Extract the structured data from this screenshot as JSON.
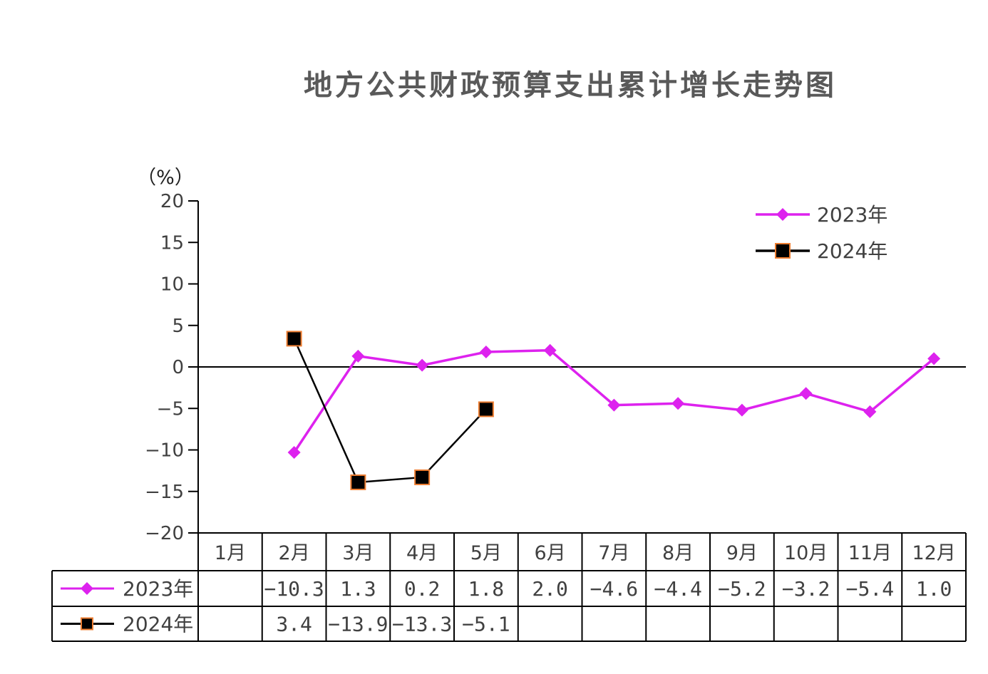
{
  "colors": {
    "series_2023": "#dd22ee",
    "series_2024": "#000000",
    "marker_2024_border": "#ed7d31",
    "axis": "#000000",
    "text": "#404040"
  },
  "chart_data": {
    "type": "line",
    "title": "地方公共财政预算支出累计增长走势图",
    "ylabel": "（%）",
    "xlabel": "",
    "ylim": [
      -20,
      20
    ],
    "yticks": [
      20,
      15,
      10,
      5,
      0,
      -5,
      -10,
      -15,
      -20
    ],
    "ytick_labels": [
      "20",
      "15",
      "10",
      "5",
      "0",
      "−5",
      "−10",
      "−15",
      "−20"
    ],
    "categories": [
      "1月",
      "2月",
      "3月",
      "4月",
      "5月",
      "6月",
      "7月",
      "8月",
      "9月",
      "10月",
      "11月",
      "12月"
    ],
    "grid": false,
    "legend_position": "top-right",
    "data_table": true,
    "series": [
      {
        "name": "2023年",
        "marker": "diamond",
        "values": [
          null,
          -10.3,
          1.3,
          0.2,
          1.8,
          2.0,
          -4.6,
          -4.4,
          -5.2,
          -3.2,
          -5.4,
          1.0
        ],
        "labels": [
          "",
          "−10.3",
          "1.3",
          "0.2",
          "1.8",
          "2.0",
          "−4.6",
          "−4.4",
          "−5.2",
          "−3.2",
          "−5.4",
          "1.0"
        ]
      },
      {
        "name": "2024年",
        "marker": "square",
        "values": [
          null,
          3.4,
          -13.9,
          -13.3,
          -5.1,
          null,
          null,
          null,
          null,
          null,
          null,
          null
        ],
        "labels": [
          "",
          "3.4",
          "−13.9",
          "−13.3",
          "−5.1",
          "",
          "",
          "",
          "",
          "",
          "",
          ""
        ]
      }
    ]
  }
}
